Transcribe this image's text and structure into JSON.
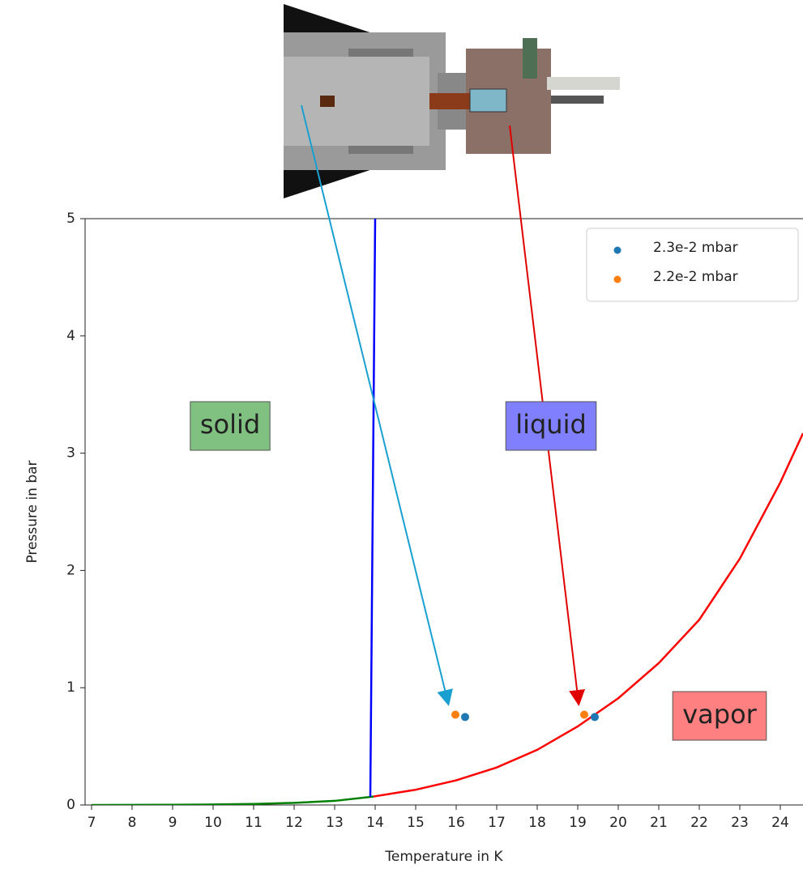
{
  "chart_data": {
    "type": "line",
    "x_label": "Temperature in K",
    "y_label": "Pressure in bar",
    "xlim": [
      6.84,
      24.56
    ],
    "ylim": [
      0,
      5
    ],
    "xticks": [
      7,
      8,
      9,
      10,
      11,
      12,
      13,
      14,
      15,
      16,
      17,
      18,
      19,
      20,
      21,
      22,
      23,
      24
    ],
    "yticks": [
      0,
      1,
      2,
      3,
      4,
      5
    ],
    "legend": "upper right",
    "series": [
      {
        "mode": "line",
        "color": "#008000",
        "x": [
          7,
          8,
          9,
          10,
          11,
          12,
          13,
          13.96
        ],
        "values": [
          0.0001,
          0.0005,
          0.0015,
          0.004,
          0.009,
          0.018,
          0.035,
          0.072
        ]
      },
      {
        "mode": "line",
        "color": "#0000ff",
        "x": [
          13.88,
          14.0
        ],
        "values": [
          0.07,
          5
        ]
      },
      {
        "mode": "line",
        "color": "#ff0000",
        "x": [
          13.96,
          15,
          16,
          17,
          18,
          19,
          20,
          21,
          22,
          23,
          24,
          24.56
        ],
        "values": [
          0.072,
          0.13,
          0.21,
          0.32,
          0.47,
          0.67,
          0.91,
          1.21,
          1.58,
          2.1,
          2.75,
          3.17
        ]
      },
      {
        "mode": "scatter",
        "name": "2.3e-2 mbar",
        "color": "#1f77b4",
        "x": [
          16.22,
          19.42
        ],
        "values": [
          0.75,
          0.75
        ]
      },
      {
        "mode": "scatter",
        "name": "2.2e-2 mbar",
        "color": "#ff7f0e",
        "x": [
          15.98,
          19.16
        ],
        "values": [
          0.77,
          0.77
        ]
      }
    ],
    "annotations": [
      {
        "text": "solid",
        "color": "#80c080"
      },
      {
        "text": "liquid",
        "color": "#8080ff"
      },
      {
        "text": "vapor",
        "color": "#ff8080"
      }
    ]
  }
}
